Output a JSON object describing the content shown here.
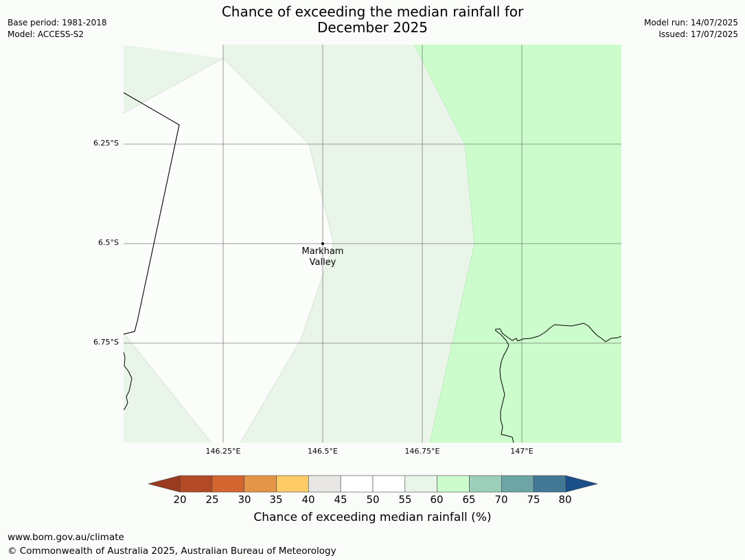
{
  "header": {
    "title_line1": "Chance of exceeding the median rainfall for",
    "title_line2": "December 2025",
    "base_period": "Base period: 1981-2018",
    "model": "Model: ACCESS-S2",
    "model_run": "Model run: 14/07/2025",
    "issued": "Issued: 17/07/2025"
  },
  "map": {
    "lat_ticks": [
      "6.25°S",
      "6.5°S",
      "6.75°S"
    ],
    "lon_ticks": [
      "146.25°E",
      "146.5°E",
      "146.75°E",
      "147°E"
    ],
    "place": {
      "name_line1": "Markham",
      "name_line2": "Valley"
    },
    "colors": {
      "band_50_55": "#fbfdfa",
      "band_55_60": "#eaf5e9",
      "band_60_65": "#ccfccc"
    }
  },
  "colorbar": {
    "title": "Chance of exceeding median rainfall (%)",
    "ticks": [
      "20",
      "25",
      "30",
      "35",
      "40",
      "45",
      "50",
      "55",
      "60",
      "65",
      "70",
      "75",
      "80"
    ],
    "colors": [
      "#b34a26",
      "#d3652f",
      "#e39548",
      "#fecb66",
      "#e8e7e5",
      "#ffffff",
      "#ffffff",
      "#eaf5e9",
      "#ccfccc",
      "#9ccfb9",
      "#6da5a6",
      "#417896"
    ],
    "under_color": "#9a3a1f",
    "over_color": "#1a4f8a"
  },
  "footer": {
    "url": "www.bom.gov.au/climate",
    "copyright": "© Commonwealth of Australia 2025, Australian Bureau of Meteorology"
  }
}
